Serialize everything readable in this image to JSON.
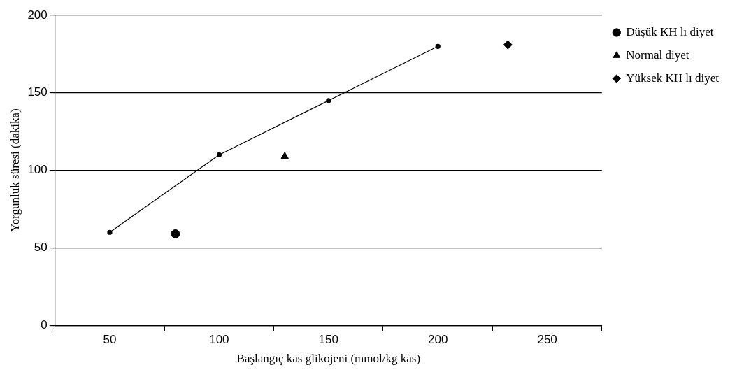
{
  "chart_data": {
    "type": "scatter",
    "xlabel": "Başlangıç kas glikojeni (mmol/kg kas)",
    "ylabel": "Yorgunluk süresi (dakika)",
    "xlim": [
      25,
      275
    ],
    "xticks": [
      {
        "value": 25,
        "label": null
      },
      50,
      {
        "value": 75,
        "label": null
      },
      100,
      {
        "value": 125,
        "label": null
      },
      150,
      {
        "value": 175,
        "label": null
      },
      200,
      {
        "value": 225,
        "label": null
      },
      250,
      {
        "value": 275,
        "label": null
      }
    ],
    "ylim": [
      0,
      200
    ],
    "yticks": [
      0,
      50,
      100,
      150,
      200
    ],
    "grid": "y",
    "legend": "right",
    "series": [
      {
        "type": "line",
        "color": "#000000",
        "x": [
          50,
          100,
          150,
          200
        ],
        "values": [
          60,
          110,
          145,
          180
        ],
        "marker": "circle"
      },
      {
        "name": "Düşük KH lı diyet",
        "color": "#000000",
        "x": [
          80
        ],
        "values": [
          59
        ],
        "marker": "circle"
      },
      {
        "name": "Normal diyet",
        "color": "#000000",
        "x": [
          130
        ],
        "values": [
          109
        ],
        "marker": "triangle"
      },
      {
        "name": "Yüksek KH lı diyet",
        "color": "#000000",
        "x": [
          232
        ],
        "values": [
          181
        ],
        "marker": "diamond"
      }
    ]
  }
}
